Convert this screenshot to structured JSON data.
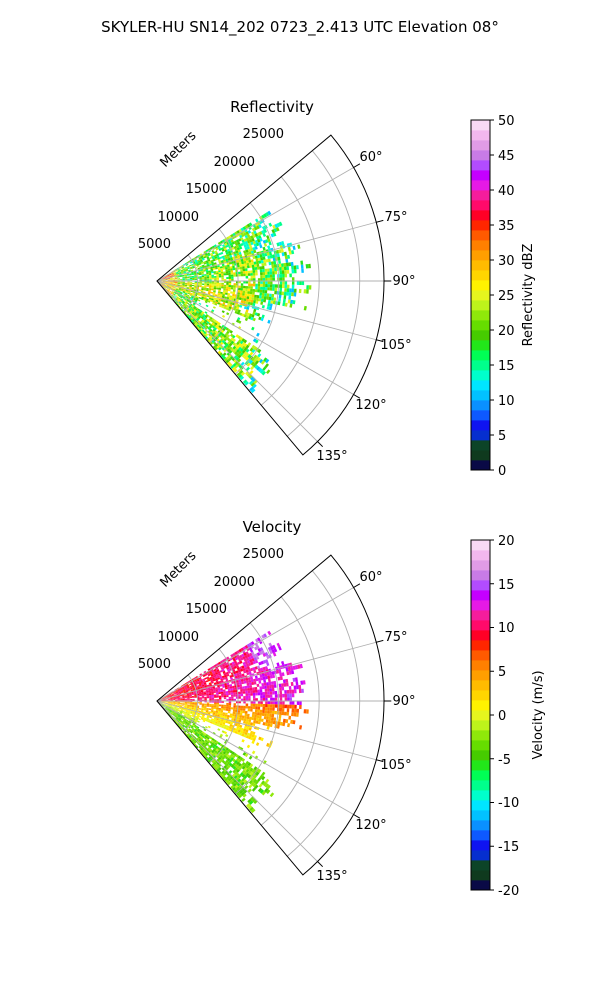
{
  "suptitle": "SKYLER-HU  SN14_202  0723_2.413 UTC Elevation 08°",
  "chart_data": [
    {
      "type": "heatmap",
      "projection": "polar-sector",
      "title": "Reflectivity",
      "radial_label": "Meters",
      "radial_ticks": [
        "5000",
        "10000",
        "15000",
        "20000",
        "25000"
      ],
      "radial_tick_values": [
        5000,
        10000,
        15000,
        20000,
        25000
      ],
      "rlim": [
        0,
        28000
      ],
      "angle_ticks": [
        "60°",
        "75°",
        "90°",
        "105°",
        "120°",
        "135°"
      ],
      "angle_tick_values": [
        60,
        75,
        90,
        105,
        120,
        135
      ],
      "thetalim": [
        50,
        140
      ],
      "grid": true,
      "colorbar": {
        "label": "Reflectivity dBZ",
        "ticks": [
          "0",
          "5",
          "10",
          "15",
          "20",
          "25",
          "30",
          "35",
          "40",
          "45",
          "50"
        ],
        "range": [
          0,
          50
        ],
        "colors": [
          "#0a0a46",
          "#0f3a1e",
          "#0c4428",
          "#062fcf",
          "#0f14f0",
          "#0e59ff",
          "#0a90ff",
          "#02c1ff",
          "#00e6ff",
          "#00ffcc",
          "#00ff8c",
          "#00ff55",
          "#22e61a",
          "#46cc00",
          "#66dd00",
          "#8fe80a",
          "#bdf31b",
          "#e6f51e",
          "#fff200",
          "#ffd600",
          "#ffbb00",
          "#ff9f00",
          "#ff8000",
          "#ff5a00",
          "#ff2600",
          "#ff0026",
          "#ff0a6a",
          "#f51d9c",
          "#e61ae6",
          "#c400ff",
          "#b24cff",
          "#c87be6",
          "#e09be6",
          "#f2b7ee",
          "#f9d9f5"
        ],
        "position": "right"
      },
      "field_summary": {
        "dominant_values_dbz": [
          12,
          30
        ],
        "core_max_dbz": 37,
        "coverage_range_m": [
          0,
          18000
        ],
        "coverage_azimuth_deg": [
          58,
          138
        ]
      }
    },
    {
      "type": "heatmap",
      "projection": "polar-sector",
      "title": "Velocity",
      "radial_label": "Meters",
      "radial_ticks": [
        "5000",
        "10000",
        "15000",
        "20000",
        "25000"
      ],
      "radial_tick_values": [
        5000,
        10000,
        15000,
        20000,
        25000
      ],
      "rlim": [
        0,
        28000
      ],
      "angle_ticks": [
        "60°",
        "75°",
        "90°",
        "105°",
        "120°",
        "135°"
      ],
      "angle_tick_values": [
        60,
        75,
        90,
        105,
        120,
        135
      ],
      "thetalim": [
        50,
        140
      ],
      "grid": true,
      "colorbar": {
        "label": "Velocity (m/s)",
        "ticks": [
          "-20",
          "-15",
          "-10",
          "-5",
          "0",
          "5",
          "10",
          "15",
          "20"
        ],
        "range": [
          -20,
          20
        ],
        "colors": [
          "#0a0a46",
          "#0f3a1e",
          "#0c4428",
          "#062fcf",
          "#0f14f0",
          "#0e59ff",
          "#0a90ff",
          "#02c1ff",
          "#00e6ff",
          "#00ffcc",
          "#00ff8c",
          "#00ff55",
          "#22e61a",
          "#46cc00",
          "#66dd00",
          "#8fe80a",
          "#bdf31b",
          "#e6f51e",
          "#fff200",
          "#ffd600",
          "#ffbb00",
          "#ff9f00",
          "#ff8000",
          "#ff5a00",
          "#ff2600",
          "#ff0026",
          "#ff0a6a",
          "#f51d9c",
          "#e61ae6",
          "#c400ff",
          "#b24cff",
          "#c87be6",
          "#e09be6",
          "#f2b7ee",
          "#f9d9f5"
        ],
        "position": "right"
      },
      "field_summary": {
        "velocity_range_ms": [
          -8,
          14
        ],
        "coverage_range_m": [
          0,
          18000
        ],
        "coverage_azimuth_deg": [
          58,
          138
        ]
      }
    }
  ]
}
